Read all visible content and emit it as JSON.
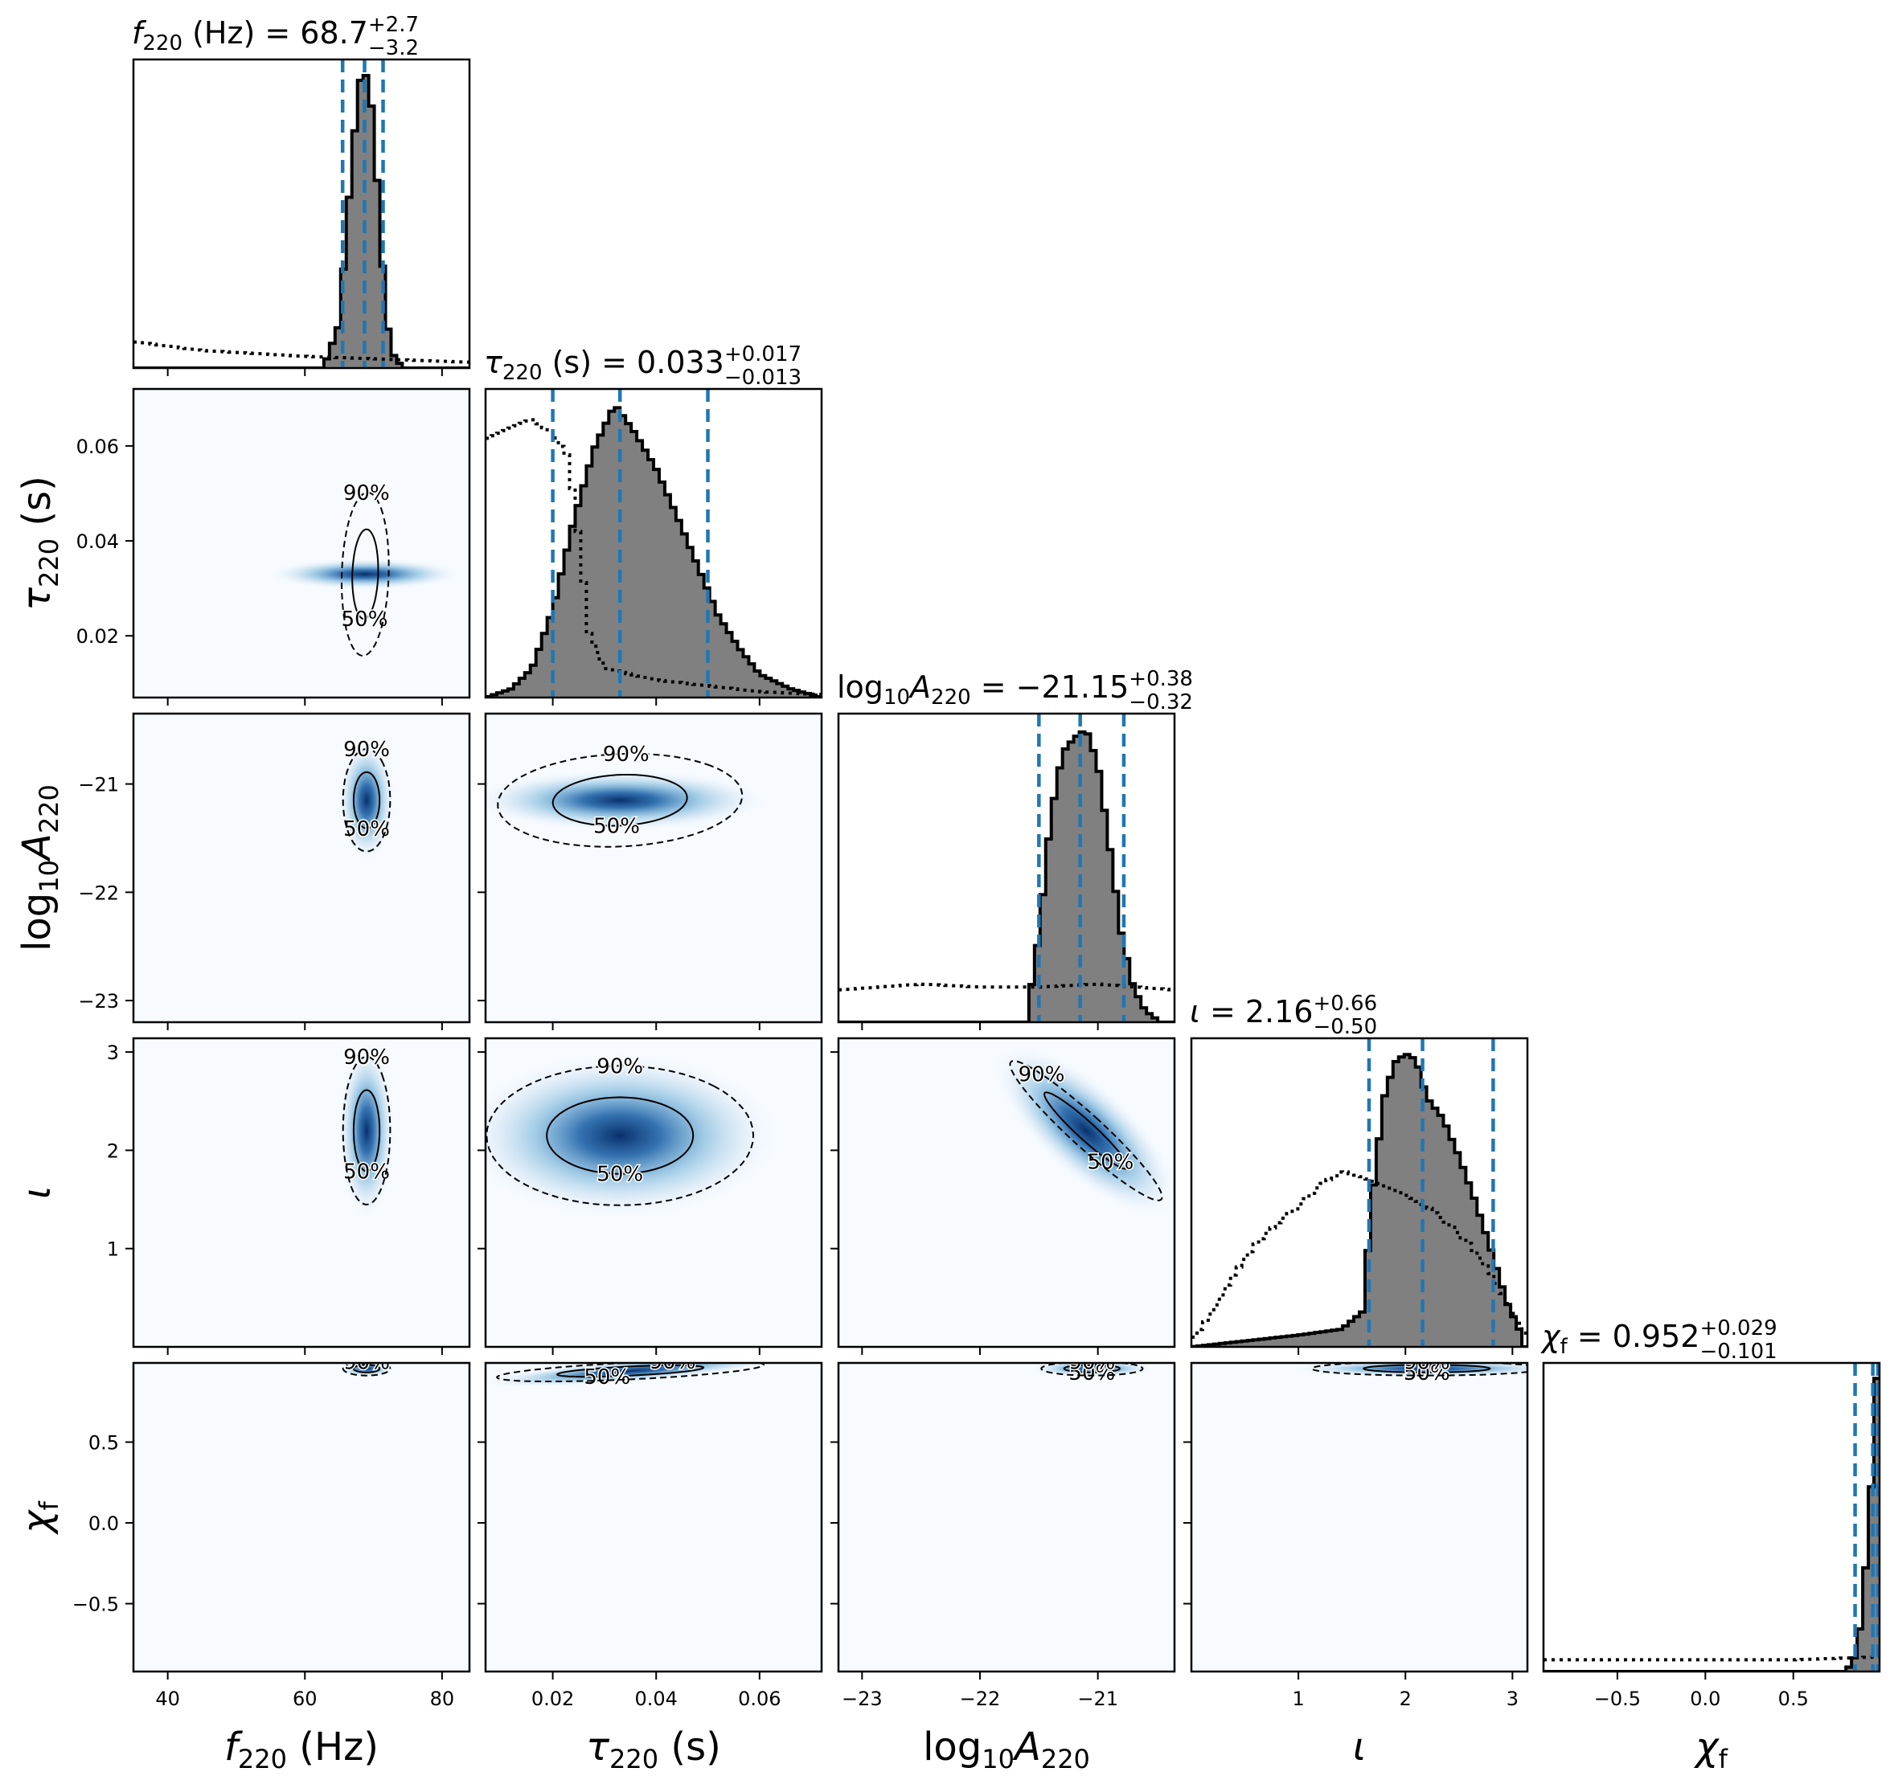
{
  "chart_data": {
    "type": "corner",
    "colors": {
      "density": "#1f63a8",
      "hist_fill": "#808080",
      "median_line": "#1f77b4",
      "edge": "#000000"
    },
    "parameters": [
      {
        "key": "f220",
        "axis_label": {
          "main": "f",
          "sub": "220",
          "unit": " (Hz)"
        },
        "title": {
          "main": "f",
          "sub": "220",
          "rest": " (Hz) = 68.7",
          "plus": "+2.7",
          "minus": "−3.2"
        },
        "range": [
          35,
          84
        ],
        "ticks": [
          40,
          60,
          80
        ],
        "tick_labels": [
          "40",
          "60",
          "80"
        ],
        "median": 68.7,
        "lower": 65.5,
        "upper": 71.4,
        "prior": [
          [
            35,
            0.09
          ],
          [
            45,
            0.06
          ],
          [
            60,
            0.04
          ],
          [
            84,
            0.02
          ]
        ],
        "posterior": [
          [
            63,
            0.02
          ],
          [
            65,
            0.15
          ],
          [
            66,
            0.45
          ],
          [
            67,
            0.75
          ],
          [
            68,
            0.98
          ],
          [
            69,
            1.0
          ],
          [
            70,
            0.85
          ],
          [
            71,
            0.45
          ],
          [
            72,
            0.15
          ],
          [
            73,
            0.04
          ],
          [
            74,
            0.01
          ]
        ]
      },
      {
        "key": "tau220",
        "axis_label": {
          "main": "τ",
          "sub": "220",
          "unit": " (s)"
        },
        "title": {
          "main": "τ",
          "sub": "220",
          "rest": " (s) = 0.033",
          "plus": "+0.017",
          "minus": "−0.013"
        },
        "range": [
          0.007,
          0.072
        ],
        "ticks": [
          0.02,
          0.04,
          0.06
        ],
        "tick_labels": [
          "0.02",
          "0.04",
          "0.06"
        ],
        "median": 0.033,
        "lower": 0.02,
        "upper": 0.05,
        "prior": [
          [
            0.007,
            0.88
          ],
          [
            0.012,
            0.92
          ],
          [
            0.016,
            0.95
          ],
          [
            0.02,
            0.9
          ],
          [
            0.023,
            0.82
          ],
          [
            0.025,
            0.55
          ],
          [
            0.027,
            0.22
          ],
          [
            0.03,
            0.1
          ],
          [
            0.04,
            0.06
          ],
          [
            0.05,
            0.04
          ],
          [
            0.06,
            0.02
          ],
          [
            0.072,
            0.01
          ]
        ],
        "posterior": [
          [
            0.007,
            0.0
          ],
          [
            0.012,
            0.03
          ],
          [
            0.016,
            0.1
          ],
          [
            0.02,
            0.3
          ],
          [
            0.024,
            0.6
          ],
          [
            0.028,
            0.85
          ],
          [
            0.032,
            1.0
          ],
          [
            0.036,
            0.9
          ],
          [
            0.04,
            0.78
          ],
          [
            0.044,
            0.62
          ],
          [
            0.048,
            0.45
          ],
          [
            0.052,
            0.28
          ],
          [
            0.056,
            0.17
          ],
          [
            0.06,
            0.08
          ],
          [
            0.066,
            0.03
          ],
          [
            0.072,
            0.0
          ]
        ]
      },
      {
        "key": "logA220",
        "axis_label": {
          "main": "log",
          "sub": "10",
          "var": "A",
          "sub2": "220"
        },
        "title": {
          "main": "log",
          "sub": "10",
          "var": "A",
          "sub2": "220",
          "rest": " = −21.15",
          "plus": "+0.38",
          "minus": "−0.32"
        },
        "range": [
          -23.2,
          -20.35
        ],
        "ticks": [
          -23,
          -22,
          -21
        ],
        "tick_labels": [
          "−23",
          "−22",
          "−21"
        ],
        "median": -21.15,
        "lower": -21.5,
        "upper": -20.78,
        "prior": [
          [
            -23.2,
            0.11
          ],
          [
            -22.5,
            0.13
          ],
          [
            -22.0,
            0.12
          ],
          [
            -21.5,
            0.12
          ],
          [
            -21.0,
            0.13
          ],
          [
            -20.35,
            0.11
          ]
        ],
        "posterior": [
          [
            -21.6,
            0.02
          ],
          [
            -21.5,
            0.3
          ],
          [
            -21.4,
            0.7
          ],
          [
            -21.3,
            0.92
          ],
          [
            -21.2,
            0.97
          ],
          [
            -21.1,
            1.0
          ],
          [
            -21.0,
            0.88
          ],
          [
            -20.9,
            0.6
          ],
          [
            -20.8,
            0.3
          ],
          [
            -20.7,
            0.12
          ],
          [
            -20.6,
            0.04
          ],
          [
            -20.5,
            0.01
          ]
        ]
      },
      {
        "key": "iota",
        "axis_label": {
          "main": "ι"
        },
        "title": {
          "main": "ι",
          "rest": " = 2.16",
          "plus": "+0.66",
          "minus": "−0.50"
        },
        "range": [
          0.0,
          3.14
        ],
        "ticks": [
          1,
          2,
          3
        ],
        "tick_labels": [
          "1",
          "2",
          "3"
        ],
        "median": 2.16,
        "lower": 1.66,
        "upper": 2.82,
        "prior": [
          [
            0.02,
            0.03
          ],
          [
            0.2,
            0.12
          ],
          [
            0.4,
            0.25
          ],
          [
            0.6,
            0.35
          ],
          [
            0.8,
            0.42
          ],
          [
            1.0,
            0.48
          ],
          [
            1.2,
            0.55
          ],
          [
            1.4,
            0.6
          ],
          [
            1.6,
            0.58
          ],
          [
            1.8,
            0.55
          ],
          [
            2.0,
            0.52
          ],
          [
            2.2,
            0.48
          ],
          [
            2.4,
            0.42
          ],
          [
            2.6,
            0.35
          ],
          [
            2.8,
            0.25
          ],
          [
            3.0,
            0.12
          ],
          [
            3.14,
            0.03
          ]
        ],
        "posterior": [
          [
            0.0,
            0.0
          ],
          [
            0.5,
            0.02
          ],
          [
            1.0,
            0.04
          ],
          [
            1.4,
            0.06
          ],
          [
            1.6,
            0.12
          ],
          [
            1.7,
            0.55
          ],
          [
            1.8,
            0.85
          ],
          [
            1.9,
            0.97
          ],
          [
            2.0,
            1.0
          ],
          [
            2.1,
            0.98
          ],
          [
            2.2,
            0.85
          ],
          [
            2.35,
            0.78
          ],
          [
            2.5,
            0.65
          ],
          [
            2.65,
            0.5
          ],
          [
            2.8,
            0.33
          ],
          [
            2.95,
            0.15
          ],
          [
            3.1,
            0.03
          ]
        ]
      },
      {
        "key": "chif",
        "axis_label": {
          "main": "χ",
          "sub": "f"
        },
        "title": {
          "main": "χ",
          "sub": "f",
          "rest": " = 0.952",
          "plus": "+0.029",
          "minus": "−0.101"
        },
        "range": [
          -0.92,
          0.99
        ],
        "ticks": [
          -0.5,
          0.0,
          0.5
        ],
        "tick_labels": [
          "−0.5",
          "0.0",
          "0.5"
        ],
        "median": 0.952,
        "lower": 0.851,
        "upper": 0.981,
        "prior": [
          [
            -0.92,
            0.04
          ],
          [
            -0.5,
            0.04
          ],
          [
            0.0,
            0.04
          ],
          [
            0.5,
            0.04
          ],
          [
            0.99,
            0.05
          ]
        ],
        "posterior": [
          [
            0.8,
            0.0
          ],
          [
            0.85,
            0.05
          ],
          [
            0.88,
            0.15
          ],
          [
            0.91,
            0.35
          ],
          [
            0.94,
            0.6
          ],
          [
            0.97,
            1.0
          ],
          [
            0.99,
            1.0
          ]
        ]
      }
    ],
    "joint": [
      {
        "row": 1,
        "col": 0,
        "mean": [
          68.8,
          0.033
        ],
        "sd": [
          1.6,
          0.008
        ],
        "rho": 0.1,
        "labels": [
          "50%",
          "90%"
        ]
      },
      {
        "row": 2,
        "col": 0,
        "mean": [
          69.0,
          -21.15
        ],
        "sd": [
          1.6,
          0.22
        ],
        "rho": 0.0,
        "labels": [
          "50%",
          "90%"
        ]
      },
      {
        "row": 2,
        "col": 1,
        "mean": [
          0.033,
          -21.15
        ],
        "sd": [
          0.011,
          0.2
        ],
        "rho": 0.1,
        "labels": [
          "50%",
          "90%"
        ]
      },
      {
        "row": 3,
        "col": 0,
        "mean": [
          69.0,
          2.2
        ],
        "sd": [
          1.6,
          0.35
        ],
        "rho": 0.0,
        "labels": [
          "50%",
          "90%"
        ]
      },
      {
        "row": 3,
        "col": 1,
        "mean": [
          0.033,
          2.15
        ],
        "sd": [
          0.012,
          0.33
        ],
        "rho": 0.0,
        "labels": [
          "50%",
          "90%"
        ]
      },
      {
        "row": 3,
        "col": 2,
        "mean": [
          -21.1,
          2.2
        ],
        "sd": [
          0.3,
          0.33
        ],
        "rho": -0.95,
        "labels": [
          "50%",
          "90%"
        ]
      },
      {
        "row": 4,
        "col": 0,
        "mean": [
          69.0,
          0.955
        ],
        "sd": [
          1.6,
          0.02
        ],
        "rho": 0.0,
        "labels": [
          "90%"
        ]
      },
      {
        "row": 4,
        "col": 1,
        "mean": [
          0.035,
          0.94
        ],
        "sd": [
          0.012,
          0.03
        ],
        "rho": 0.6,
        "labels": [
          "50%",
          "90%"
        ]
      },
      {
        "row": 4,
        "col": 2,
        "mean": [
          -21.05,
          0.955
        ],
        "sd": [
          0.2,
          0.02
        ],
        "rho": 0.0,
        "labels": [
          "50%",
          "90%"
        ]
      },
      {
        "row": 4,
        "col": 3,
        "mean": [
          2.2,
          0.955
        ],
        "sd": [
          0.5,
          0.02
        ],
        "rho": 0.0,
        "labels": [
          "50%",
          "90%"
        ]
      }
    ]
  }
}
